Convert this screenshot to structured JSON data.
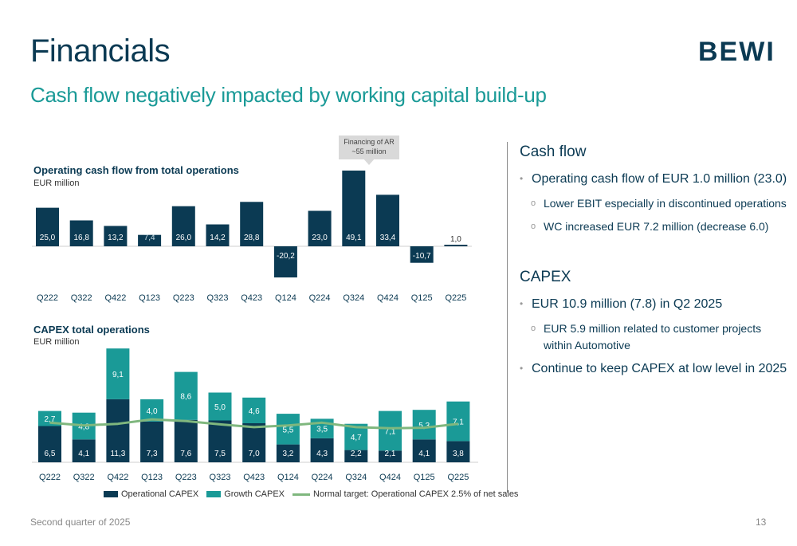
{
  "header": {
    "title": "Financials",
    "subtitle": "Cash flow negatively impacted by working capital build-up",
    "logo": "BEWI"
  },
  "colors": {
    "dark": "#0b3a53",
    "teal": "#1a9a97",
    "line": "#7fb77e"
  },
  "callout": {
    "line1": "Financing of AR",
    "line2": "~55 million"
  },
  "chart_data": [
    {
      "type": "bar",
      "title": "Operating cash flow from total operations",
      "unit": "EUR million",
      "categories": [
        "Q222",
        "Q322",
        "Q422",
        "Q123",
        "Q223",
        "Q323",
        "Q423",
        "Q124",
        "Q224",
        "Q324",
        "Q424",
        "Q125",
        "Q225"
      ],
      "values": [
        25.0,
        16.8,
        13.2,
        7.4,
        26.0,
        14.2,
        28.8,
        -20.2,
        23.0,
        49.1,
        33.4,
        -10.7,
        1.0
      ],
      "labels": [
        "25,0",
        "16,8",
        "13,2",
        "7,4",
        "26,0",
        "14,2",
        "28,8",
        "-20,2",
        "23,0",
        "49,1",
        "33,4",
        "-10,7",
        "1,0"
      ],
      "ylim": [
        -22,
        55
      ]
    },
    {
      "type": "bar",
      "stacked": true,
      "title": "CAPEX total operations",
      "unit": "EUR million",
      "categories": [
        "Q222",
        "Q322",
        "Q422",
        "Q123",
        "Q223",
        "Q323",
        "Q423",
        "Q124",
        "Q224",
        "Q324",
        "Q424",
        "Q125",
        "Q225"
      ],
      "series": [
        {
          "name": "Operational CAPEX",
          "values": [
            6.5,
            4.1,
            11.3,
            7.3,
            7.6,
            7.5,
            7.0,
            3.2,
            4.3,
            2.2,
            2.1,
            4.1,
            3.8
          ],
          "labels": [
            "6,5",
            "4,1",
            "11,3",
            "7,3",
            "7,6",
            "7,5",
            "7,0",
            "3,2",
            "4,3",
            "2,2",
            "2,1",
            "4,1",
            "3,8"
          ]
        },
        {
          "name": "Growth CAPEX",
          "values": [
            2.7,
            4.8,
            9.1,
            4.0,
            8.6,
            5.0,
            4.6,
            5.5,
            3.5,
            4.7,
            7.1,
            5.3,
            7.1
          ],
          "labels": [
            "2,7",
            "4,8",
            "9,1",
            "4,0",
            "8,6",
            "5,0",
            "4,6",
            "5,5",
            "3,5",
            "4,7",
            "7,1",
            "5,3",
            "7,1"
          ]
        },
        {
          "name": "Normal target: Operational CAPEX 2.5% of net sales",
          "type": "line",
          "values": [
            7.1,
            6.6,
            6.9,
            7.7,
            7.4,
            6.8,
            6.3,
            6.6,
            7.1,
            6.3,
            6.1,
            6.2,
            6.9
          ]
        }
      ],
      "ylim": [
        0,
        21
      ]
    }
  ],
  "panel": {
    "cash_heading": "Cash flow",
    "cash_bullet": "Operating cash flow of EUR 1.0 million (23.0)",
    "cash_sub1": "Lower EBIT especially in discontinued operations",
    "cash_sub2": "WC increased EUR 7.2 million (decrease 6.0)",
    "capex_heading": "CAPEX",
    "capex_bullet1": "EUR 10.9 million (7.8) in Q2 2025",
    "capex_sub1": "EUR 5.9 million related to customer projects within Automotive",
    "capex_bullet2": "Continue to keep CAPEX at low level in 2025",
    "bullet_char": "•",
    "sub_char": "o"
  },
  "footer": {
    "left": "Second quarter of 2025",
    "page": "13"
  }
}
